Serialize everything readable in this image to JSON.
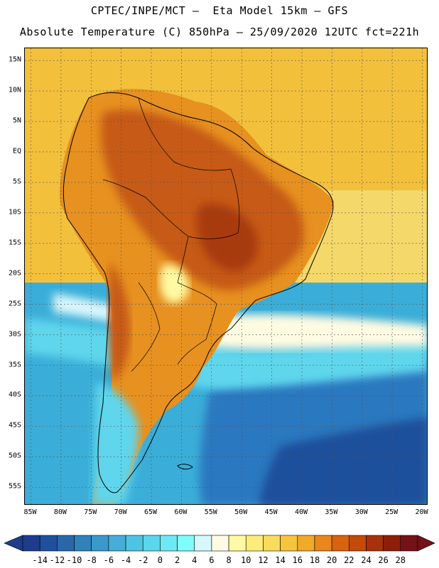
{
  "header": {
    "line1": "CPTEC/INPE/MCT –  Eta Model 15km – GFS",
    "line2": "Absolute Temperature (C) 850hPa – 25/09/2020 12UTC fct=221h"
  },
  "map": {
    "lon_min": -86,
    "lon_max": -19,
    "lat_min": -58,
    "lat_max": 17,
    "lat_labels": [
      "15N",
      "10N",
      "5N",
      "EQ",
      "5S",
      "10S",
      "15S",
      "20S",
      "25S",
      "30S",
      "35S",
      "40S",
      "45S",
      "50S",
      "55S"
    ],
    "lat_values": [
      15,
      10,
      5,
      0,
      -5,
      -10,
      -15,
      -20,
      -25,
      -30,
      -35,
      -40,
      -45,
      -50,
      -55
    ],
    "lon_labels": [
      "85W",
      "80W",
      "75W",
      "70W",
      "65W",
      "60W",
      "55W",
      "50W",
      "45W",
      "40W",
      "35W",
      "30W",
      "25W",
      "20W"
    ],
    "lon_values": [
      -85,
      -80,
      -75,
      -70,
      -65,
      -60,
      -55,
      -50,
      -45,
      -40,
      -35,
      -30,
      -25,
      -20
    ],
    "palette": {
      "ocean_north": "#f3c03c",
      "ocean_mid": "#f5d86a",
      "land_warm": "#e79120",
      "land_hot": "#c65a14",
      "land_hottest": "#a83a10",
      "coast_cold": "#d8f6fb",
      "cold_light": "#5fd6ec",
      "cold_mid": "#3aaed8",
      "cold_deep": "#2a78bf",
      "cold_deepest": "#1f4f9c"
    }
  },
  "colorbar": {
    "labels": [
      "-14",
      "-12",
      "-10",
      "-8",
      "-6",
      "-4",
      "-2",
      "0",
      "2",
      "4",
      "6",
      "8",
      "10",
      "12",
      "14",
      "16",
      "18",
      "20",
      "22",
      "24",
      "26",
      "28"
    ],
    "colors": [
      "#1e3c8c",
      "#20509c",
      "#2868aa",
      "#2f82bb",
      "#3a98cb",
      "#46add8",
      "#4ec4e3",
      "#5cd6ec",
      "#6ee8f4",
      "#7ffcfc",
      "#d6f7fb",
      "#fffbe3",
      "#fff9a3",
      "#fcec7a",
      "#f9dc5a",
      "#f6c53c",
      "#f0a928",
      "#e8871c",
      "#d8620e",
      "#c44a0a",
      "#a8300a",
      "#8c1e0a",
      "#741218"
    ]
  }
}
